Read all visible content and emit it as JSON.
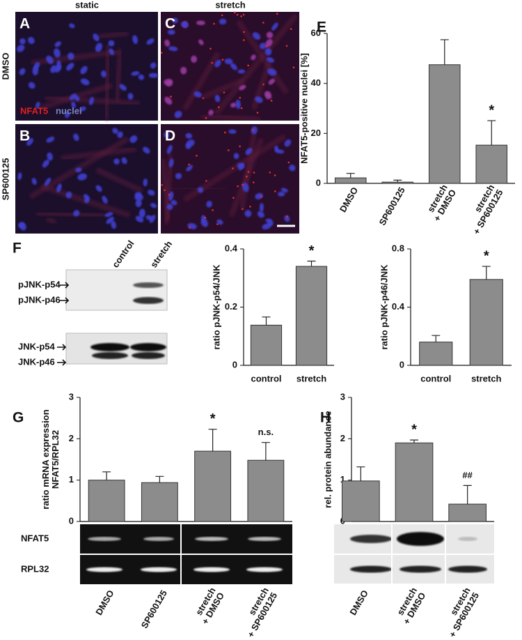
{
  "micrographs": {
    "column_labels": [
      "static",
      "stretch"
    ],
    "row_labels": [
      "DMSO",
      "SP600125"
    ],
    "panels": [
      "A",
      "C",
      "B",
      "D"
    ],
    "stain_labels": [
      "NFAT5",
      "nuclei"
    ]
  },
  "blot_F": {
    "panel": "F",
    "lane_labels": [
      "control",
      "stretch"
    ],
    "band_labels": [
      "pJNK-p54",
      "pJNK-p46",
      "JNK-p54",
      "JNK-p46"
    ]
  },
  "gel_G": {
    "row_labels": [
      "NFAT5",
      "RPL32"
    ]
  },
  "chart_data": [
    {
      "type": "bar",
      "panel": "E",
      "ylabel": "NFAT5-positive  nuclei [%]",
      "categories": [
        "DMSO",
        "SP600125",
        "stretch\n+ DMSO",
        "stretch\n+ SP600125"
      ],
      "values": [
        2.2,
        0.5,
        47.5,
        15.3
      ],
      "errors": [
        1.8,
        0.8,
        10,
        9.8
      ],
      "annotations": [
        null,
        null,
        null,
        "*"
      ],
      "ylim": [
        0,
        60
      ],
      "yticks": [
        0,
        20,
        40,
        60
      ],
      "color": "#8c8c8c"
    },
    {
      "type": "bar",
      "ylabel": "ratio pJNK-p54/JNK",
      "categories": [
        "control",
        "stretch"
      ],
      "values": [
        0.138,
        0.34
      ],
      "errors": [
        0.028,
        0.018
      ],
      "annotations": [
        null,
        "*"
      ],
      "ylim": [
        0,
        0.4
      ],
      "yticks": [
        0,
        0.2,
        0.4
      ],
      "color": "#8c8c8c"
    },
    {
      "type": "bar",
      "ylabel": "ratio pJNK-p46/JNK",
      "categories": [
        "control",
        "stretch"
      ],
      "values": [
        0.16,
        0.59
      ],
      "errors": [
        0.045,
        0.09
      ],
      "annotations": [
        null,
        "*"
      ],
      "ylim": [
        0,
        0.8
      ],
      "yticks": [
        0,
        0.4,
        0.8
      ],
      "color": "#8c8c8c"
    },
    {
      "type": "bar",
      "panel": "G",
      "ylabel": "ratio mRNA expression\nNFAT5/RPL32",
      "categories": [
        "DMSO",
        "SP600125",
        "stretch\n+ DMSO",
        "stretch\n+ SP600125"
      ],
      "values": [
        1.0,
        0.94,
        1.7,
        1.48
      ],
      "errors": [
        0.2,
        0.15,
        0.53,
        0.43
      ],
      "annotations": [
        null,
        null,
        "*",
        "n.s."
      ],
      "ylim": [
        0,
        3
      ],
      "yticks": [
        0,
        1,
        2,
        3
      ],
      "color": "#8c8c8c"
    },
    {
      "type": "bar",
      "panel": "H",
      "ylabel": "rel. protein abundance",
      "categories": [
        "DMSO",
        "stretch\n+ DMSO",
        "stretch\n+ SP600125"
      ],
      "values": [
        0.98,
        1.9,
        0.42
      ],
      "errors": [
        0.34,
        0.07,
        0.45
      ],
      "annotations": [
        null,
        "*",
        "##"
      ],
      "ylim": [
        0,
        3
      ],
      "yticks": [
        0,
        1,
        2,
        3
      ],
      "color": "#8c8c8c"
    }
  ]
}
